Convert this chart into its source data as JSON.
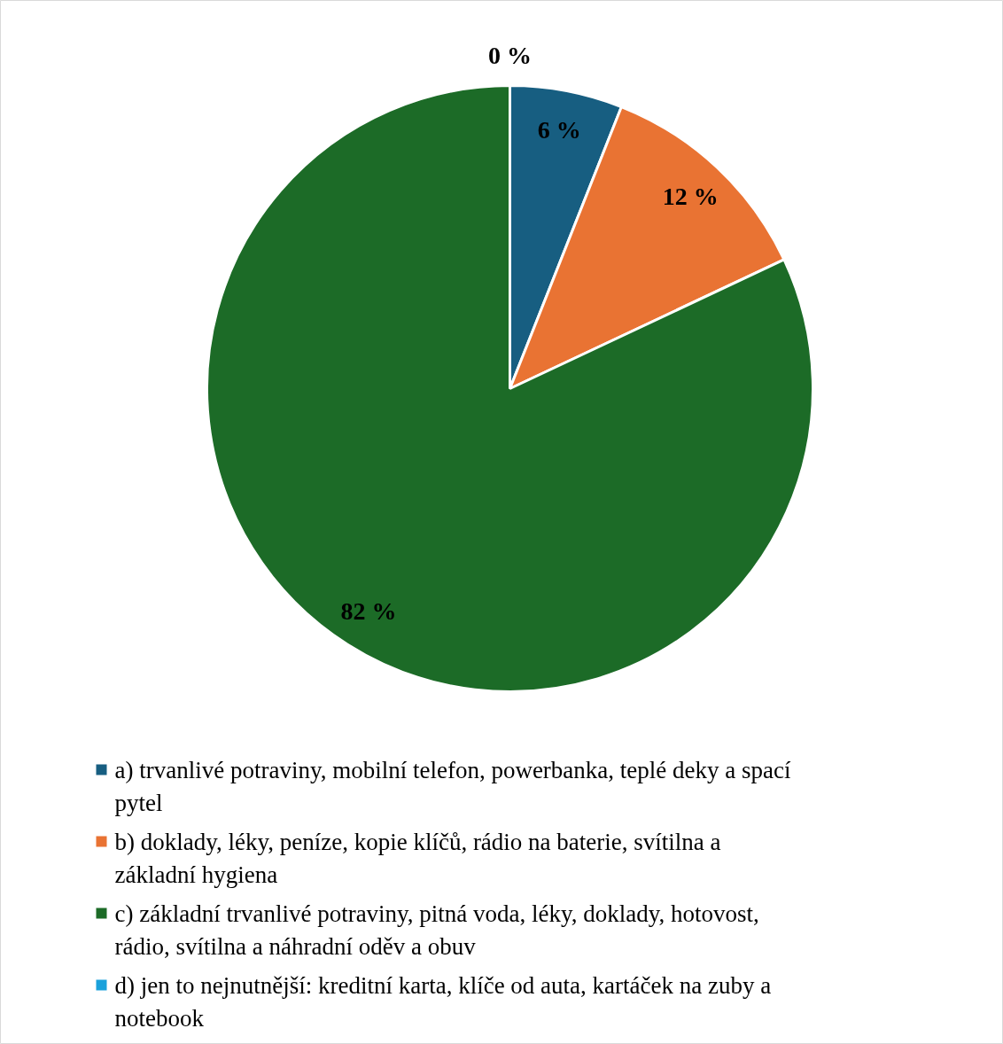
{
  "chart_data": {
    "type": "pie",
    "categories": [
      "a) trvanlivé potraviny, mobilní telefon, powerbanka, teplé deky a spací pytel",
      "b) doklady, léky, peníze, kopie klíčů, rádio na baterie, svítilna a základní hygiena",
      "c) základní trvanlivé potraviny, pitná voda, léky, doklady, hotovost, rádio, svítilna a náhradní oděv a obuv",
      "d) jen to nejnutnější: kreditní karta, klíče od auta, kartáček na zuby a notebook"
    ],
    "values": [
      6,
      12,
      82,
      0
    ],
    "value_labels": [
      "6 %",
      "12 %",
      "82 %",
      "0 %"
    ],
    "colors": [
      "#175e81",
      "#e97333",
      "#1c6b27",
      "#1aa1db"
    ],
    "legend": "bottom"
  }
}
